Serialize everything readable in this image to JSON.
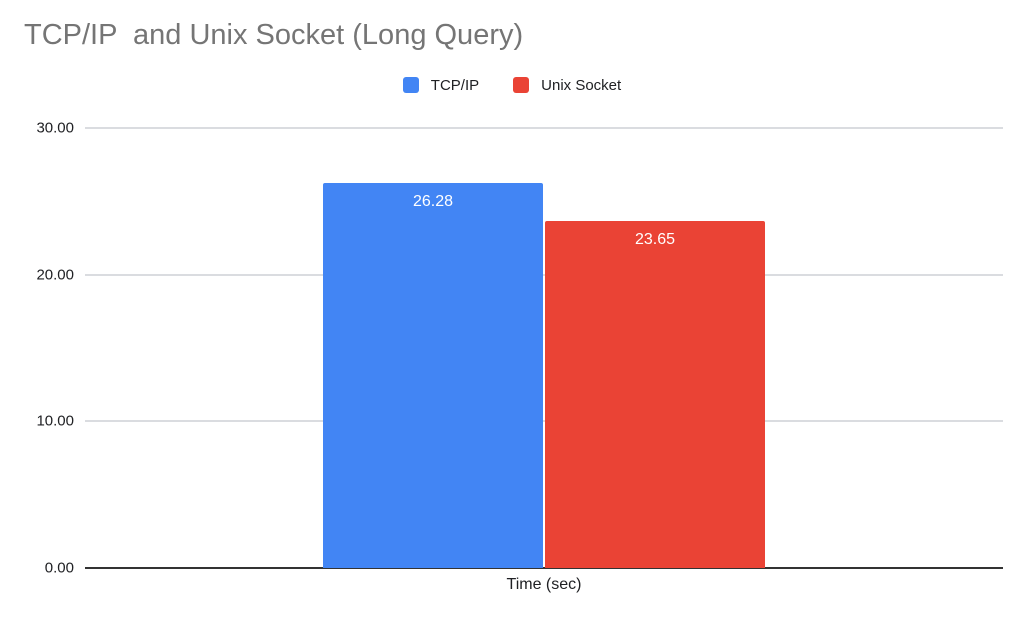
{
  "chart_data": {
    "type": "bar",
    "title": "TCP/IP  and Unix Socket (Long Query)",
    "categories": [
      "Time (sec)"
    ],
    "series": [
      {
        "name": "TCP/IP",
        "values": [
          26.28
        ],
        "labels": [
          "26.28"
        ],
        "color": "#4285f4"
      },
      {
        "name": "Unix Socket",
        "values": [
          23.65
        ],
        "labels": [
          "23.65"
        ],
        "color": "#ea4335"
      }
    ],
    "xlabel": "Time (sec)",
    "ylabel": "",
    "ylim": [
      0,
      30
    ],
    "yticks": [
      30,
      20,
      10,
      0
    ],
    "ytick_labels": [
      "30.00",
      "20.00",
      "10.00",
      "0.00"
    ],
    "grid": true,
    "legend_position": "top",
    "data_labels_position": "inside-top",
    "colors": {
      "title_text": "#757575",
      "axis_text": "#202124",
      "bar_label_text": "#ffffff",
      "gridline": "#dadce0",
      "axis_line": "#333333",
      "background": "#ffffff"
    }
  }
}
